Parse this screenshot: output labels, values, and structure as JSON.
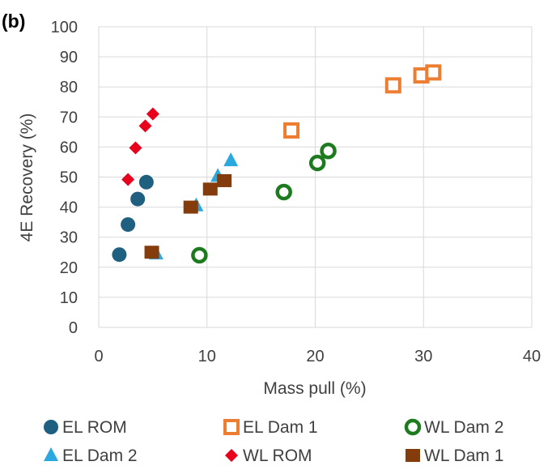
{
  "chart_data": {
    "type": "scatter",
    "panel_label": "(b)",
    "xlabel": "Mass pull (%)",
    "ylabel": "4E Recovery (%)",
    "xlim": [
      0,
      40
    ],
    "ylim": [
      0,
      100
    ],
    "xticks": [
      0,
      10,
      20,
      30,
      40
    ],
    "yticks": [
      0,
      10,
      20,
      30,
      40,
      50,
      60,
      70,
      80,
      90,
      100
    ],
    "grid": true,
    "legend_position": "bottom",
    "series": [
      {
        "id": "el-rom",
        "name": "EL ROM",
        "marker": "circle",
        "color": "#1f5f7f",
        "points": [
          [
            1.9,
            24.2
          ],
          [
            2.7,
            34.2
          ],
          [
            3.6,
            42.7
          ],
          [
            4.4,
            48.3
          ]
        ]
      },
      {
        "id": "el-dam-1",
        "name": "EL Dam 1",
        "marker": "square-open",
        "color": "#ed7d31",
        "points": [
          [
            17.8,
            65.5
          ],
          [
            27.2,
            80.5
          ],
          [
            29.8,
            83.8
          ],
          [
            30.9,
            84.8
          ]
        ]
      },
      {
        "id": "wl-dam-2",
        "name": "WL Dam 2",
        "marker": "circle-open",
        "color": "#1e7a1e",
        "points": [
          [
            9.3,
            24.0
          ],
          [
            17.1,
            45.0
          ],
          [
            20.2,
            54.7
          ],
          [
            21.2,
            58.7
          ]
        ]
      },
      {
        "id": "el-dam-2",
        "name": "EL Dam 2",
        "marker": "triangle",
        "color": "#29a9e0",
        "points": [
          [
            5.3,
            24.5
          ],
          [
            9.0,
            40.5
          ],
          [
            11.0,
            50.3
          ],
          [
            12.2,
            55.5
          ]
        ]
      },
      {
        "id": "wl-rom",
        "name": "WL ROM",
        "marker": "diamond",
        "color": "#e8001c",
        "points": [
          [
            2.7,
            49.2
          ],
          [
            3.4,
            59.7
          ],
          [
            4.3,
            67.0
          ],
          [
            5.0,
            71.0
          ]
        ]
      },
      {
        "id": "wl-dam-1",
        "name": "WL Dam 1",
        "marker": "square",
        "color": "#843c0c",
        "points": [
          [
            4.9,
            25.0
          ],
          [
            8.5,
            40.0
          ],
          [
            10.3,
            46.0
          ],
          [
            11.6,
            48.8
          ]
        ]
      }
    ]
  }
}
